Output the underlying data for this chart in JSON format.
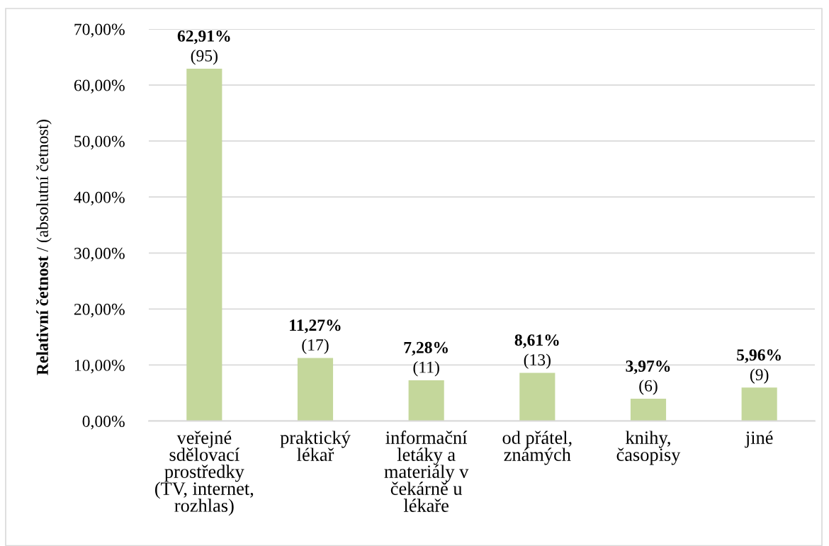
{
  "chart_data": {
    "type": "bar",
    "ylabel": "Relativní četnost / (absolutní četnost)",
    "categories": [
      "veřejné sdělovací prostředky (TV, internet, rozhlas)",
      "praktický lékař",
      "informační letáky a materiály v čekárně u lékaře",
      "od přátel, známých",
      "knihy, časopisy",
      "jiné"
    ],
    "values": [
      62.91,
      11.27,
      7.28,
      8.61,
      3.97,
      5.96
    ],
    "value_labels": [
      "62,91%\n(95)",
      "11,27%\n(17)",
      "7,28%\n(11)",
      "8,61%\n(13)",
      "3,97%\n(6)",
      "5,96%\n(9)"
    ],
    "color": "#c4d79b",
    "ylim": [
      0,
      70
    ],
    "yticks": [
      {
        "value": 0,
        "label": "0,00%"
      },
      {
        "value": 10,
        "label": "10,00%"
      },
      {
        "value": 20,
        "label": "20,00%"
      },
      {
        "value": 30,
        "label": "30,00%"
      },
      {
        "value": 40,
        "label": "40,00%"
      },
      {
        "value": 50,
        "label": "50,00%"
      },
      {
        "value": 60,
        "label": "60,00%"
      },
      {
        "value": 70,
        "label": "70,00%"
      }
    ],
    "grid": "y"
  }
}
